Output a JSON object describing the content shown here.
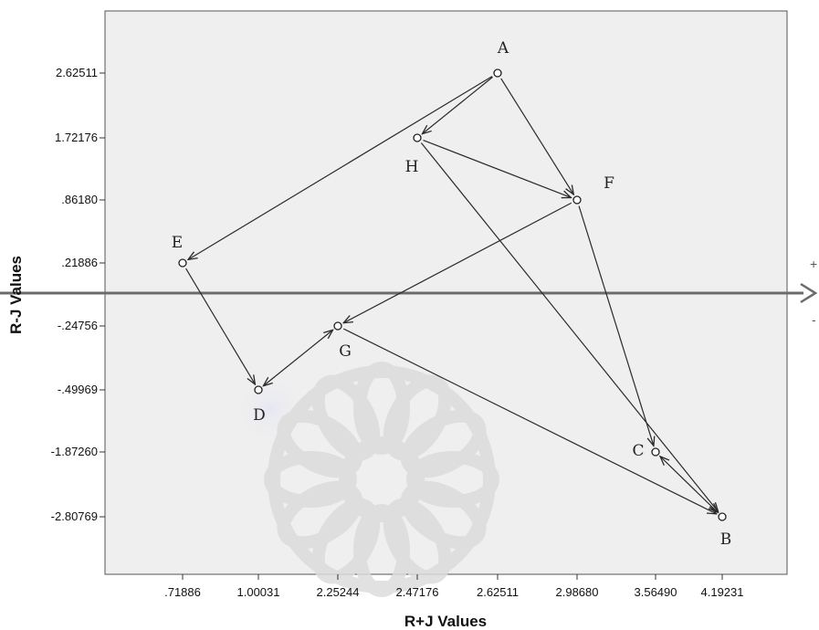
{
  "chart_data": {
    "type": "scatter",
    "xlabel": "R+J Values",
    "ylabel": "R-J Values",
    "x_ticks": [
      ".71886",
      "1.00031",
      "2.25244",
      "2.47176",
      "2.62511",
      "2.98680",
      "3.56490",
      "4.19231"
    ],
    "y_ticks": [
      "2.62511",
      "1.72176",
      ".86180",
      ".21886",
      "-.24756",
      "-.49969",
      "-1.87260",
      "-2.80769"
    ],
    "points": [
      {
        "label": "A",
        "x": "2.62511",
        "y": "2.62511"
      },
      {
        "label": "H",
        "x": "2.47176",
        "y": "1.72176"
      },
      {
        "label": "F",
        "x": "2.98680",
        "y": ".86180"
      },
      {
        "label": "E",
        "x": ".71886",
        "y": ".21886"
      },
      {
        "label": "G",
        "x": "2.25244",
        "y": "-.24756"
      },
      {
        "label": "D",
        "x": "1.00031",
        "y": "-.49969"
      },
      {
        "label": "C",
        "x": "3.56490",
        "y": "-1.87260"
      },
      {
        "label": "B",
        "x": "4.19231",
        "y": "-2.80769"
      }
    ],
    "links": [
      {
        "from": "A",
        "to": "H"
      },
      {
        "from": "A",
        "to": "F"
      },
      {
        "from": "A",
        "to": "E"
      },
      {
        "from": "H",
        "to": "F"
      },
      {
        "from": "H",
        "to": "B"
      },
      {
        "from": "F",
        "to": "C"
      },
      {
        "from": "F",
        "to": "G"
      },
      {
        "from": "E",
        "to": "D"
      },
      {
        "from": "D",
        "to": "G",
        "bidirectional": true
      },
      {
        "from": "G",
        "to": "B"
      },
      {
        "from": "C",
        "to": "B",
        "bidirectional": true
      }
    ],
    "x_axis_plus": "+",
    "x_axis_minus": "-",
    "grid": false,
    "colors": {
      "plot_bg": "#efefef",
      "axis_line": "#6b6b6b",
      "arrow": "#2a2a2a"
    }
  }
}
